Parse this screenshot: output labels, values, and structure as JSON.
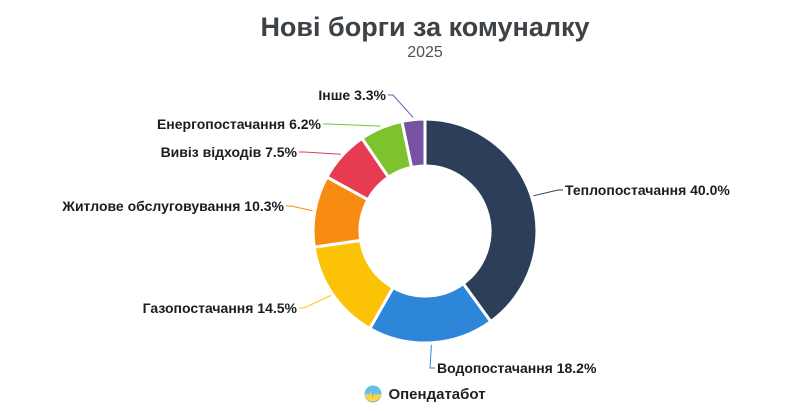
{
  "title": "Нові борги за комуналку",
  "subtitle": "2025",
  "footer": {
    "brand": "Опендатабот",
    "logo_icon": "opendatabot-pulse-logo"
  },
  "chart_data": {
    "type": "pie",
    "variant": "donut",
    "title": "Нові борги за комуналку",
    "subtitle": "2025",
    "unit": "%",
    "start_angle_deg": 0,
    "direction": "clockwise",
    "legend": "none",
    "label_format": "{label} {value}%",
    "slices": [
      {
        "label": "Теплопостачання",
        "value": 40.0,
        "color": "#2d3e59"
      },
      {
        "label": "Водопостачання",
        "value": 18.2,
        "color": "#2e86d8"
      },
      {
        "label": "Газопостачання",
        "value": 14.5,
        "color": "#fcc306"
      },
      {
        "label": "Житлове обслуговування",
        "value": 10.3,
        "color": "#f88b11"
      },
      {
        "label": "Вивіз відходів",
        "value": 7.5,
        "color": "#e73b52"
      },
      {
        "label": "Енергопостачання",
        "value": 6.2,
        "color": "#7cc32e"
      },
      {
        "label": "Інше",
        "value": 3.3,
        "color": "#7653a4"
      }
    ]
  }
}
